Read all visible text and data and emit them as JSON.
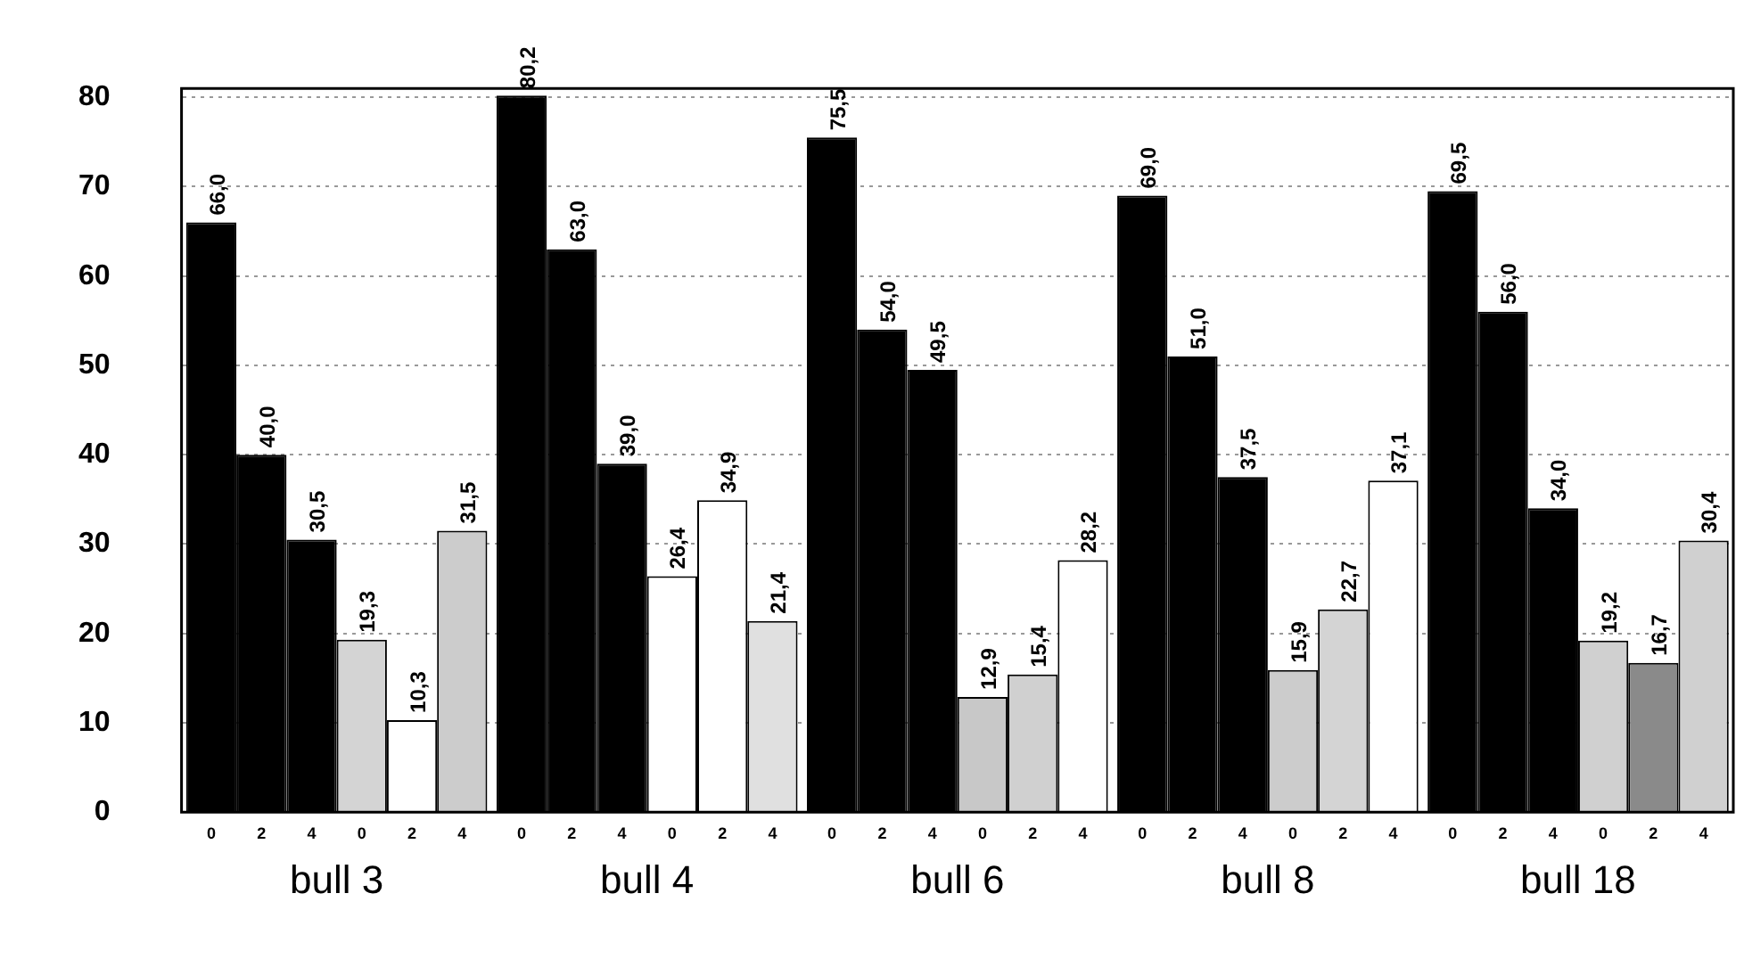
{
  "chart_data": {
    "type": "bar",
    "categories": [
      "bull 3",
      "bull 4",
      "bull 6",
      "bull 8",
      "bull 18"
    ],
    "series": [
      {
        "name": "0",
        "color": "#000000",
        "values": [
          66.0,
          80.2,
          75.5,
          69.0,
          69.5
        ],
        "value_labels": [
          "66,0",
          "80,2",
          "75,5",
          "69,0",
          "69,5"
        ]
      },
      {
        "name": "2",
        "color": "#000000",
        "values": [
          40.0,
          63.0,
          54.0,
          51.0,
          56.0
        ],
        "value_labels": [
          "40,0",
          "63,0",
          "54,0",
          "51,0",
          "56,0"
        ]
      },
      {
        "name": "4",
        "color": "#000000",
        "values": [
          30.5,
          39.0,
          49.5,
          37.5,
          34.0
        ],
        "value_labels": [
          "30,5",
          "39,0",
          "49,5",
          "37,5",
          "34,0"
        ]
      },
      {
        "name": "0",
        "colors": [
          "#d4d4d4",
          "#ffffff",
          "#c8c8c8",
          "#cccccc",
          "#d0d0d0"
        ],
        "values": [
          19.3,
          26.4,
          12.9,
          15.9,
          19.2
        ],
        "value_labels": [
          "19,3",
          "26,4",
          "12,9",
          "15,9",
          "19,2"
        ]
      },
      {
        "name": "2",
        "colors": [
          "#ffffff",
          "#ffffff",
          "#d0d0d0",
          "#d4d4d4",
          "#8a8a8a"
        ],
        "values": [
          10.3,
          34.9,
          15.4,
          22.7,
          16.7
        ],
        "value_labels": [
          "10,3",
          "34,9",
          "15,4",
          "22,7",
          "16,7"
        ]
      },
      {
        "name": "4",
        "colors": [
          "#cccccc",
          "#e0e0e0",
          "#ffffff",
          "#ffffff",
          "#d0d0d0"
        ],
        "values": [
          31.5,
          21.4,
          28.2,
          37.1,
          30.4
        ],
        "value_labels": [
          "31,5",
          "21,4",
          "28,2",
          "37,1",
          "30,4"
        ]
      }
    ],
    "ylim": [
      0,
      81
    ],
    "yticks": [
      0,
      10,
      20,
      30,
      40,
      50,
      60,
      70,
      80
    ],
    "grid": "y"
  }
}
